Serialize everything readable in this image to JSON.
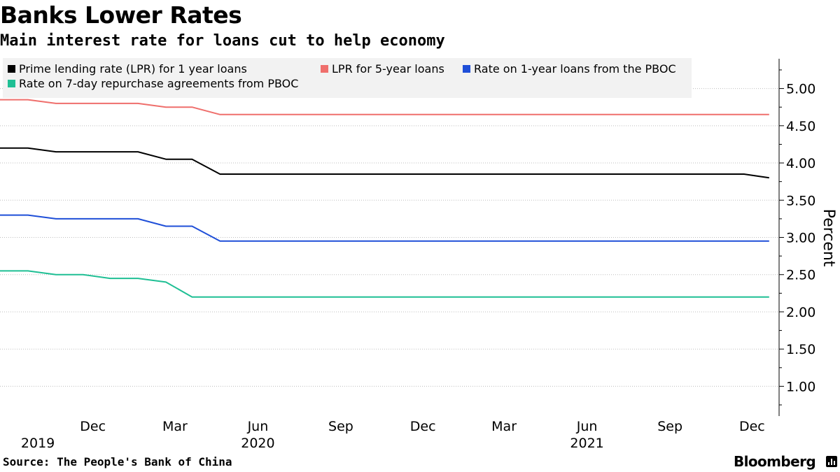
{
  "header": {
    "title": "Banks Lower Rates",
    "subtitle": "Main interest rate for loans cut to help economy"
  },
  "footer": {
    "source": "Source: The People's Bank of China",
    "brand": "Bloomberg"
  },
  "chart_data": {
    "type": "line",
    "title": "Banks Lower Rates",
    "subtitle": "Main interest rate for loans cut to help economy",
    "ylabel": "Percent",
    "ylim": [
      0.6,
      5.4
    ],
    "yticks": [
      1.0,
      1.5,
      2.0,
      2.5,
      3.0,
      3.5,
      4.0,
      4.5,
      5.0
    ],
    "ytick_labels": [
      "1.00",
      "1.50",
      "2.00",
      "2.50",
      "3.00",
      "3.50",
      "4.00",
      "4.50",
      "5.00"
    ],
    "xlim": [
      "2019-08-20",
      "2021-12-31"
    ],
    "xticks": [
      {
        "date": "2019-12-01",
        "label": "Dec"
      },
      {
        "date": "2020-03-01",
        "label": "Mar"
      },
      {
        "date": "2020-06-01",
        "label": "Jun"
      },
      {
        "date": "2020-09-01",
        "label": "Sep"
      },
      {
        "date": "2020-12-01",
        "label": "Dec"
      },
      {
        "date": "2021-03-01",
        "label": "Mar"
      },
      {
        "date": "2021-06-01",
        "label": "Jun"
      },
      {
        "date": "2021-09-01",
        "label": "Sep"
      },
      {
        "date": "2021-12-01",
        "label": "Dec"
      }
    ],
    "year_labels": [
      {
        "date": "2019-10-01",
        "label": "2019"
      },
      {
        "date": "2020-06-01",
        "label": "2020"
      },
      {
        "date": "2021-06-01",
        "label": "2021"
      }
    ],
    "grid": "horizontal dotted",
    "legend_position": "top-left",
    "series": [
      {
        "name": "Prime lending rate (LPR) for 1 year loans",
        "color": "#000000",
        "points": [
          [
            "2019-08-20",
            4.2
          ],
          [
            "2019-09-20",
            4.2
          ],
          [
            "2019-10-21",
            4.15
          ],
          [
            "2019-11-20",
            4.15
          ],
          [
            "2019-12-20",
            4.15
          ],
          [
            "2020-01-20",
            4.15
          ],
          [
            "2020-02-20",
            4.05
          ],
          [
            "2020-03-20",
            4.05
          ],
          [
            "2020-04-20",
            3.85
          ],
          [
            "2021-11-22",
            3.85
          ],
          [
            "2021-12-20",
            3.8
          ]
        ]
      },
      {
        "name": "LPR for 5-year loans",
        "color": "#ef6f6c",
        "points": [
          [
            "2019-08-20",
            4.85
          ],
          [
            "2019-09-20",
            4.85
          ],
          [
            "2019-10-21",
            4.8
          ],
          [
            "2019-11-20",
            4.8
          ],
          [
            "2019-12-20",
            4.8
          ],
          [
            "2020-01-20",
            4.8
          ],
          [
            "2020-02-20",
            4.75
          ],
          [
            "2020-03-20",
            4.75
          ],
          [
            "2020-04-20",
            4.65
          ],
          [
            "2021-12-20",
            4.65
          ]
        ]
      },
      {
        "name": "Rate on 1-year loans from the PBOC",
        "color": "#1f4fd8",
        "points": [
          [
            "2019-08-20",
            3.3
          ],
          [
            "2019-09-20",
            3.3
          ],
          [
            "2019-10-21",
            3.25
          ],
          [
            "2019-11-20",
            3.25
          ],
          [
            "2019-12-20",
            3.25
          ],
          [
            "2020-01-20",
            3.25
          ],
          [
            "2020-02-20",
            3.15
          ],
          [
            "2020-03-20",
            3.15
          ],
          [
            "2020-04-20",
            2.95
          ],
          [
            "2021-12-20",
            2.95
          ]
        ]
      },
      {
        "name": "Rate on 7-day repurchase agreements from PBOC",
        "color": "#1fbf94",
        "points": [
          [
            "2019-08-20",
            2.55
          ],
          [
            "2019-09-20",
            2.55
          ],
          [
            "2019-10-21",
            2.5
          ],
          [
            "2019-11-20",
            2.5
          ],
          [
            "2019-12-20",
            2.45
          ],
          [
            "2020-01-20",
            2.45
          ],
          [
            "2020-02-20",
            2.4
          ],
          [
            "2020-03-20",
            2.2
          ],
          [
            "2021-12-20",
            2.2
          ]
        ]
      }
    ]
  }
}
